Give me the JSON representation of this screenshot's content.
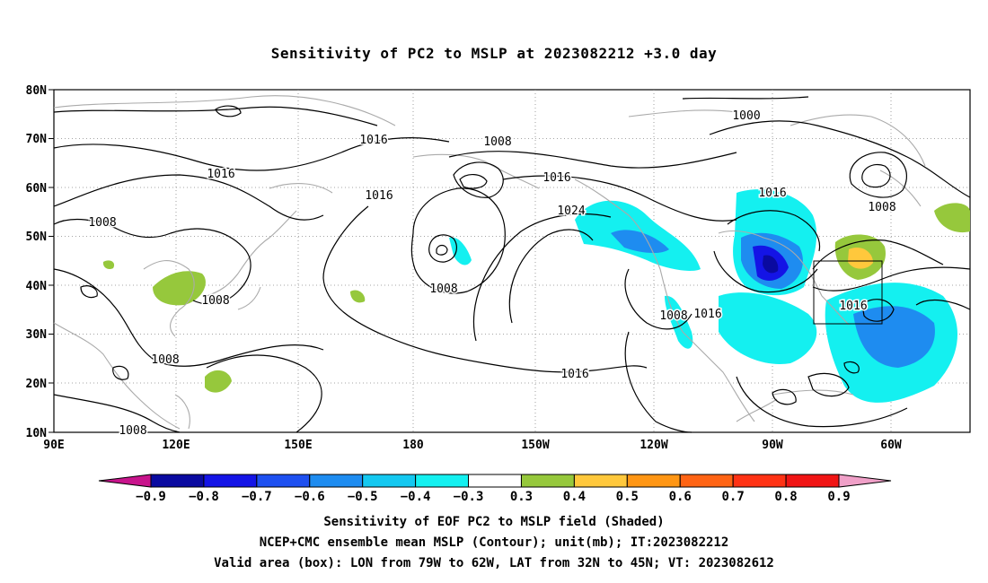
{
  "title": "Sensitivity of PC2 to MSLP at 2023082212 +3.0 day",
  "axes": {
    "lat_labels": [
      "80N",
      "70N",
      "60N",
      "50N",
      "40N",
      "30N",
      "20N",
      "10N"
    ],
    "lon_labels": [
      "90E",
      "120E",
      "150E",
      "180",
      "150W",
      "120W",
      "90W",
      "60W"
    ]
  },
  "contour_labels": [
    "1016",
    "1008",
    "1016",
    "1008",
    "1016",
    "1016",
    "1024",
    "1008",
    "1008",
    "1016",
    "1000",
    "1016",
    "1008",
    "1016",
    "1008",
    "1008",
    "1016",
    "1008",
    "1008"
  ],
  "colorbar": {
    "labels": [
      "−0.9",
      "−0.8",
      "−0.7",
      "−0.6",
      "−0.5",
      "−0.4",
      "−0.3",
      "0.3",
      "0.4",
      "0.5",
      "0.6",
      "0.7",
      "0.8",
      "0.9"
    ],
    "colors": [
      "#c8148c",
      "#0a0aa0",
      "#1414e6",
      "#1e50f0",
      "#1e8cf0",
      "#14c8f0",
      "#14f0f0",
      "#ffffff",
      "#96c83c",
      "#ffc83c",
      "#ff9614",
      "#ff6414",
      "#ff3214",
      "#f01414",
      "#f0a0c8"
    ]
  },
  "caption": {
    "line1": "Sensitivity of EOF PC2 to MSLP field (Shaded)",
    "line2": "NCEP+CMC ensemble mean MSLP (Contour); unit(mb); IT:2023082212",
    "line3": "Valid area (box): LON from 79W to 62W, LAT from 32N to 45N; VT: 2023082612"
  }
}
